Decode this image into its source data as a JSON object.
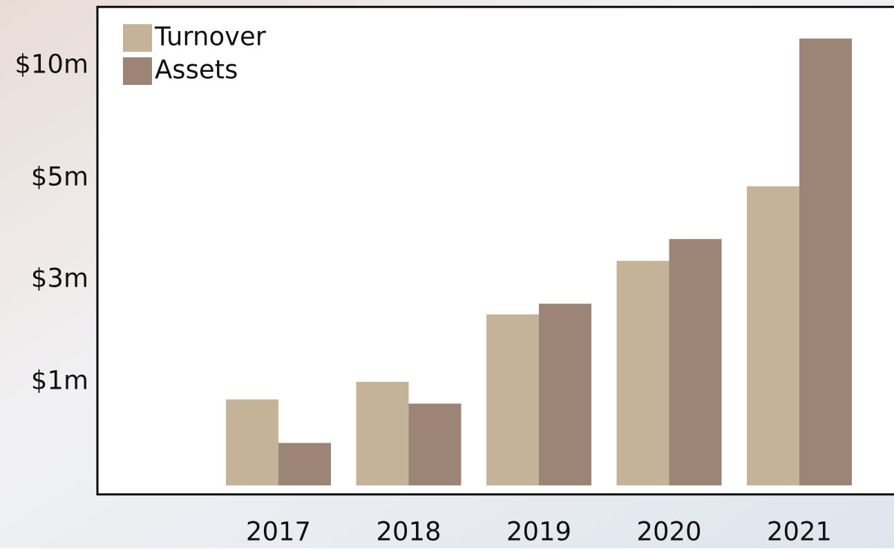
{
  "chart_data": {
    "type": "bar",
    "y_scale": "piecewise",
    "categories": [
      "2017",
      "2018",
      "2019",
      "2020",
      "2021"
    ],
    "series": [
      {
        "name": "Turnover",
        "color": "#c4b398",
        "values": [
          0.83,
          1.0,
          2.32,
          3.37,
          4.84
        ]
      },
      {
        "name": "Assets",
        "color": "#9c8576",
        "values": [
          0.41,
          0.79,
          2.53,
          3.8,
          11.2
        ]
      }
    ],
    "ylim": [
      0,
      12.6
    ],
    "yticks": [
      {
        "value": 1,
        "label": "$1m"
      },
      {
        "value": 3,
        "label": "$3m"
      },
      {
        "value": 5,
        "label": "$5m"
      },
      {
        "value": 10,
        "label": "$10m"
      }
    ],
    "legend": "upper left"
  }
}
